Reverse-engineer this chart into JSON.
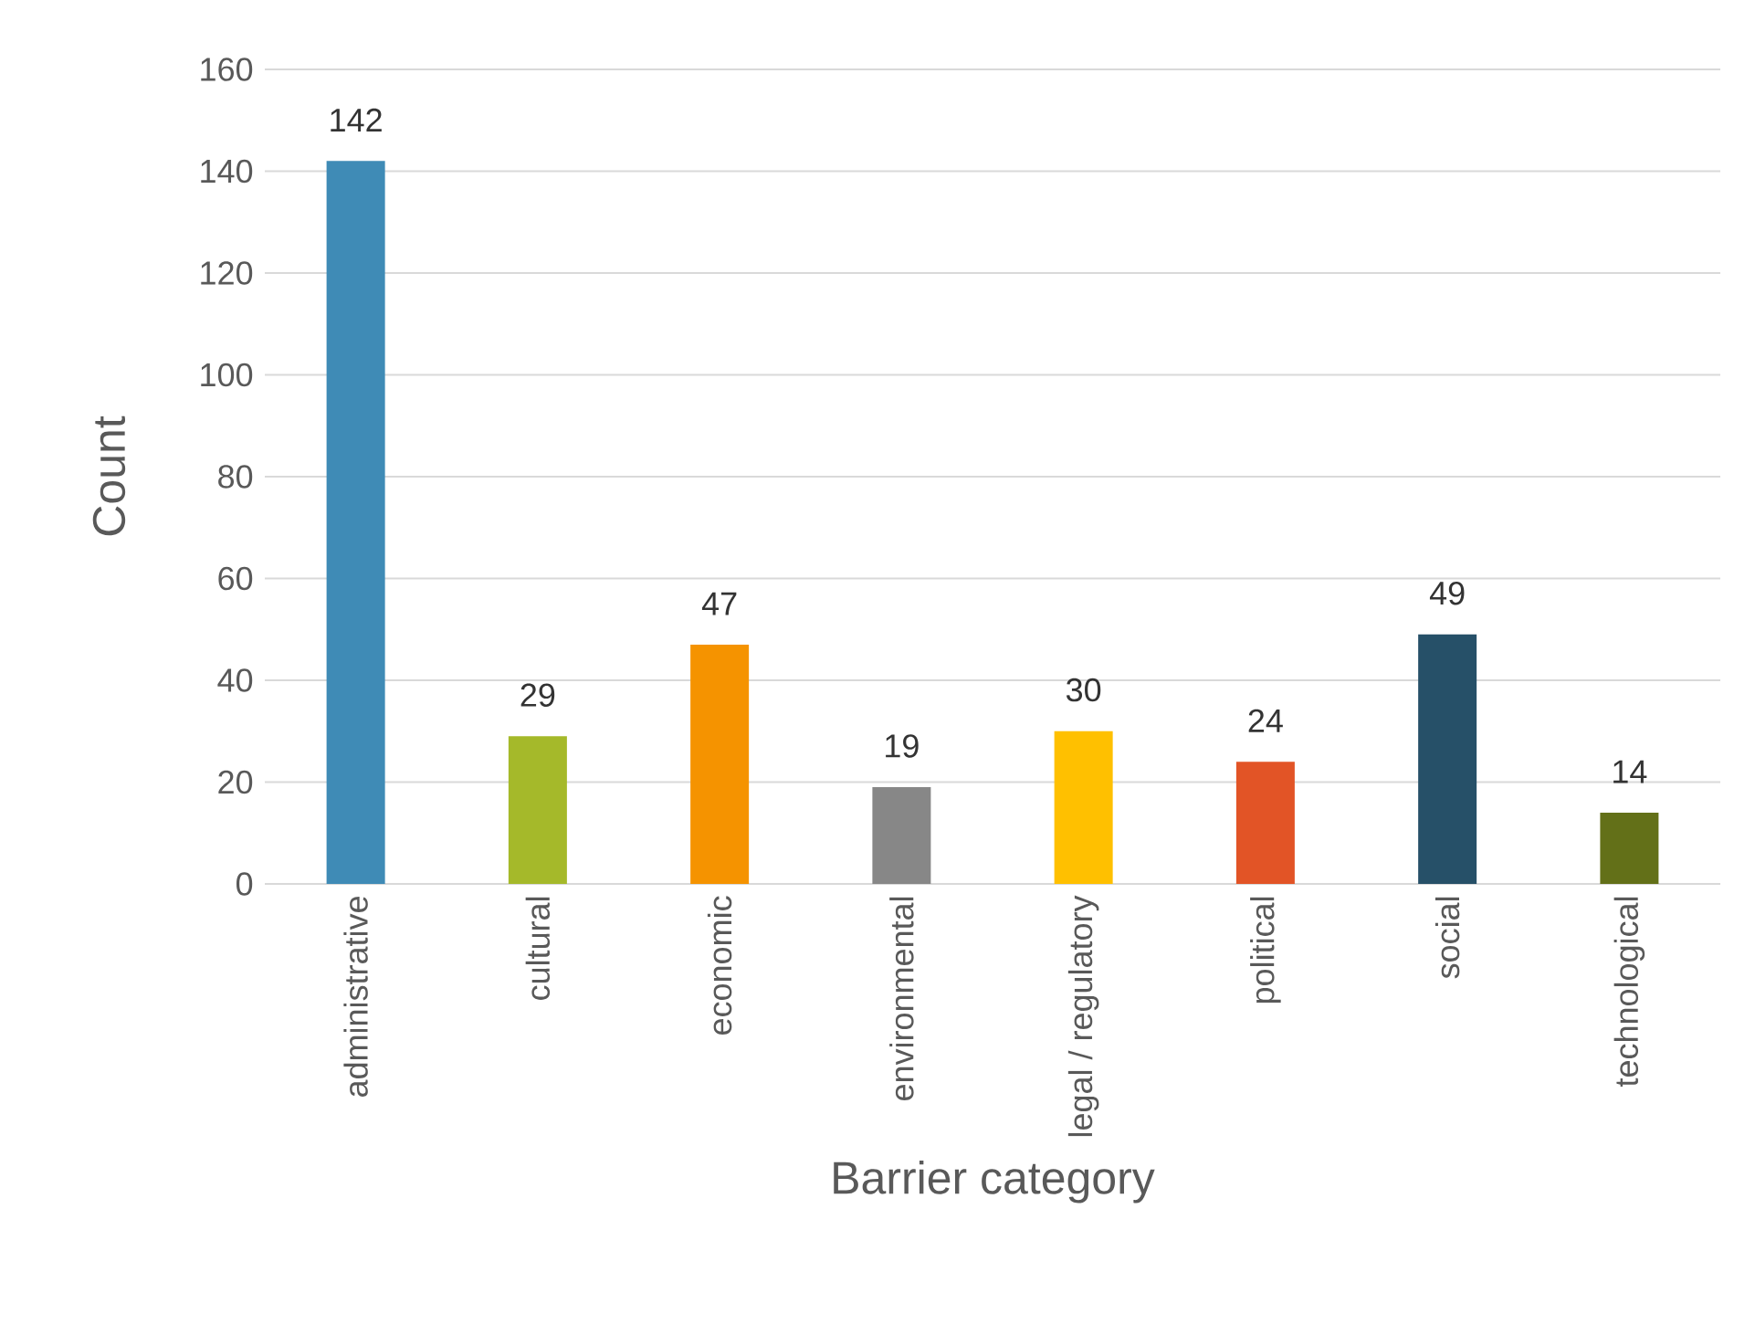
{
  "chart_data": {
    "type": "bar",
    "xlabel": "Barrier category",
    "ylabel": "Count",
    "categories": [
      "administrative",
      "cultural",
      "economic",
      "environmental",
      "legal / regulatory",
      "political",
      "social",
      "technological"
    ],
    "values": [
      142,
      29,
      47,
      19,
      30,
      24,
      49,
      14
    ],
    "colors": [
      "#3f8bb6",
      "#a5b92a",
      "#f59300",
      "#878787",
      "#ffc000",
      "#e25426",
      "#265068",
      "#637018"
    ],
    "ylim": [
      0,
      160
    ],
    "yticks": [
      0,
      20,
      40,
      60,
      80,
      100,
      120,
      140,
      160
    ],
    "grid": "y",
    "data_labels": true
  }
}
